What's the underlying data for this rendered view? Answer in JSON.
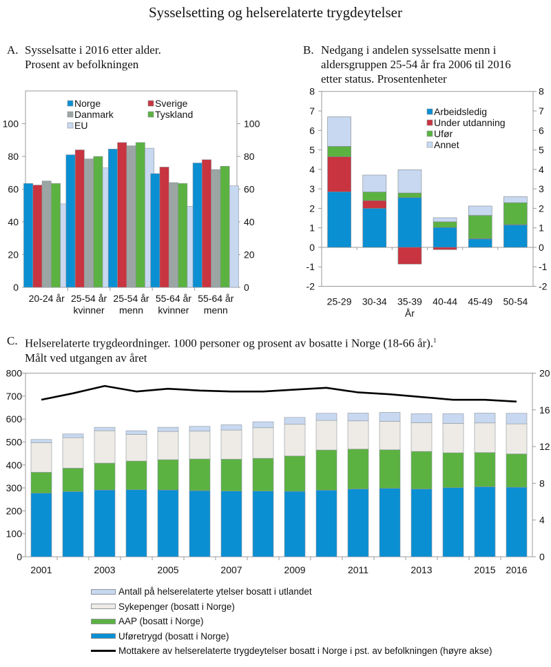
{
  "figure": {
    "title": "Sysselsetting og helserelaterte trygdeytelser"
  },
  "colors": {
    "norge": "#0a8fd3",
    "sverige": "#c8343f",
    "danmark": "#9ba6a4",
    "tyskland": "#5bb241",
    "eu": "#c7d8f0",
    "arbeidsledig": "#0a8fd3",
    "under_utdanning": "#c8343f",
    "ufor": "#5bb241",
    "annet": "#c7d8f0",
    "uforetrygd": "#0a8fd3",
    "aap": "#5bb241",
    "sykepenger": "#eeebe6",
    "utlandet": "#c7d8f0",
    "line": "#000000",
    "frame": "#9a9a9a"
  },
  "chart_data": [
    {
      "id": "A",
      "type": "bar",
      "letter": "A.",
      "title_lines": [
        "Sysselsatte i 2016 etter alder.",
        "Prosent av befolkningen"
      ],
      "categories": [
        [
          "20-24 år",
          ""
        ],
        [
          "25-54 år",
          "kvinner"
        ],
        [
          "25-54 år",
          "menn"
        ],
        [
          "55-64 år",
          "kvinner"
        ],
        [
          "55-64 år",
          "menn"
        ]
      ],
      "series": [
        {
          "name": "Norge",
          "key": "norge",
          "values": [
            63.5,
            81,
            84.5,
            69.5,
            76
          ]
        },
        {
          "name": "Sverige",
          "key": "sverige",
          "values": [
            62.5,
            84,
            88.5,
            73.5,
            78
          ]
        },
        {
          "name": "Danmark",
          "key": "danmark",
          "values": [
            65,
            78.5,
            86.5,
            64,
            72
          ]
        },
        {
          "name": "Tyskland",
          "key": "tyskland",
          "values": [
            63.5,
            80,
            88.5,
            63.5,
            74
          ]
        },
        {
          "name": "EU",
          "key": "eu",
          "values": [
            51,
            73,
            85,
            49.5,
            62
          ]
        }
      ],
      "ylim": [
        0,
        120
      ],
      "yticks": [
        0,
        20,
        40,
        60,
        80,
        100
      ],
      "legend_position": "top"
    },
    {
      "id": "B",
      "type": "bar",
      "stacked": true,
      "letter": "B.",
      "title_lines": [
        "Nedgang i andelen sysselsatte menn i",
        "aldersgruppen 25-54 år fra 2006 til 2016",
        "etter status. Prosentenheter"
      ],
      "categories": [
        "25-29",
        "30-34",
        "35-39",
        "40-44",
        "45-49",
        "50-54"
      ],
      "xlabel": "År",
      "series": [
        {
          "name": "Arbeidsledig",
          "key": "arbeidsledig",
          "values": [
            2.85,
            2.0,
            2.55,
            1.02,
            0.43,
            1.15
          ]
        },
        {
          "name": "Under utdanning",
          "key": "under_utdanning",
          "values": [
            1.8,
            0.4,
            -0.86,
            -0.12,
            0.02,
            0.02
          ]
        },
        {
          "name": "Ufør",
          "key": "ufor",
          "values": [
            0.53,
            0.44,
            0.24,
            0.29,
            1.19,
            1.12
          ]
        },
        {
          "name": "Annet",
          "key": "annet",
          "values": [
            1.52,
            0.87,
            1.19,
            0.21,
            0.48,
            0.31
          ]
        }
      ],
      "ylim": [
        -2,
        8
      ],
      "yticks": [
        -2,
        -1,
        0,
        1,
        2,
        3,
        4,
        5,
        6,
        7,
        8
      ],
      "legend_position": "top-right"
    },
    {
      "id": "C",
      "type": "bar",
      "stacked": true,
      "letter": "C.",
      "title_lines": [
        "Helserelaterte trygdeordninger. 1000 personer og prosent av bosatte i Norge (18-66 år).",
        "Målt ved utgangen av året"
      ],
      "footnote_mark": "1",
      "categories": [
        "2001",
        "2002",
        "2003",
        "2004",
        "2005",
        "2006",
        "2007",
        "2008",
        "2009",
        "2010",
        "2011",
        "2012",
        "2013",
        "2014",
        "2015",
        "2016"
      ],
      "xtick_labels": [
        "2001",
        "",
        "2003",
        "",
        "2005",
        "",
        "2007",
        "",
        "2009",
        "",
        "2011",
        "",
        "2013",
        "",
        "2015",
        "2016"
      ],
      "series": [
        {
          "name": "Uføretrygd (bosatt i Norge)",
          "key": "uforetrygd",
          "values": [
            277,
            284,
            291,
            292,
            291,
            288,
            286,
            286,
            285,
            290,
            295,
            298,
            295,
            301,
            305,
            303
          ]
        },
        {
          "name": "AAP (bosatt i Norge)",
          "key": "aap",
          "values": [
            91,
            102,
            117,
            125,
            132,
            138,
            139,
            143,
            154,
            175,
            174,
            168,
            164,
            152,
            149,
            145
          ]
        },
        {
          "name": "Sykepenger (bosatt i Norge)",
          "key": "sykepenger",
          "values": [
            129,
            133,
            141,
            116,
            123,
            121,
            127,
            133,
            138,
            129,
            123,
            124,
            125,
            128,
            129,
            131
          ]
        },
        {
          "name": "Antall på helserelaterte ytelser bosatt i utlandet",
          "key": "utlandet",
          "values": [
            14,
            16,
            15,
            16,
            18,
            21,
            23,
            26,
            30,
            31,
            34,
            39,
            39,
            42,
            43,
            46
          ]
        }
      ],
      "line_series": {
        "name": "Mottakere av helserelaterte trygdeytelser bosatt i Norge i pst. av befolkningen (høyre akse)",
        "key": "line",
        "axis": "right",
        "values": [
          17.1,
          17.8,
          18.6,
          18.0,
          18.3,
          18.1,
          18.0,
          18.0,
          18.2,
          18.4,
          17.9,
          17.7,
          17.4,
          17.1,
          17.1,
          16.9
        ]
      },
      "ylim": [
        0,
        800
      ],
      "yticks": [
        0,
        100,
        200,
        300,
        400,
        500,
        600,
        700,
        800
      ],
      "y2lim": [
        0,
        20
      ],
      "y2ticks": [
        0,
        4,
        8,
        12,
        16,
        20
      ],
      "legend_order": [
        "utlandet",
        "sykepenger",
        "aap",
        "uforetrygd",
        "line"
      ],
      "legend_position": "bottom"
    }
  ]
}
